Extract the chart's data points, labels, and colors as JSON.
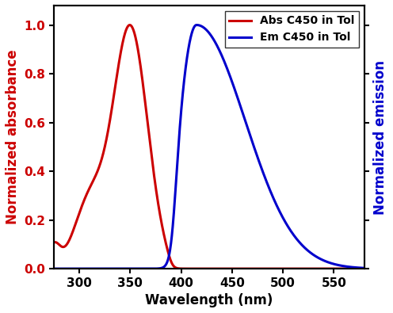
{
  "title": "",
  "xlabel": "Wavelength (nm)",
  "ylabel_left": "Normalized absorbance",
  "ylabel_right": "Normalized emission",
  "legend_abs": "Abs C450 in Tol",
  "legend_em": "Em C450 in Tol",
  "abs_color": "#cc0000",
  "em_color": "#0000cc",
  "xlim": [
    275,
    580
  ],
  "ylim": [
    0.0,
    1.08
  ],
  "xticks": [
    300,
    350,
    400,
    450,
    500,
    550
  ],
  "yticks": [
    0.0,
    0.2,
    0.4,
    0.6,
    0.8,
    1.0
  ],
  "linewidth": 2.2,
  "fontsize_label": 12,
  "fontsize_tick": 11,
  "fontsize_legend": 10,
  "background_color": "#ffffff"
}
